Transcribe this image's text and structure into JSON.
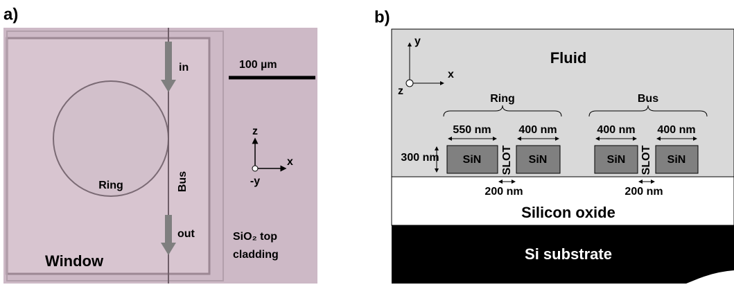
{
  "panel_a": {
    "label": "a)",
    "in": "in",
    "scale_bar": "100 µm",
    "bus": "Bus",
    "ring": "Ring",
    "out": "out",
    "cladding": [
      "SiO₂ top",
      "cladding"
    ],
    "window": "Window",
    "axes": {
      "z": "z",
      "x": "x",
      "y": "-y"
    }
  },
  "panel_b": {
    "label": "b)",
    "axes": {
      "y": "y",
      "x": "x",
      "z": "z"
    },
    "fluid": "Fluid",
    "ring": "Ring",
    "bus": "Bus",
    "widths": [
      "550 nm",
      "400 nm",
      "400 nm",
      "400 nm"
    ],
    "height": "300 nm",
    "sin": [
      "SiN",
      "SiN",
      "SiN",
      "SiN"
    ],
    "slot": [
      "SLOT",
      "SLOT"
    ],
    "gaps": [
      "200 nm",
      "200 nm"
    ],
    "oxide": "Silicon oxide",
    "substrate": "Si substrate"
  }
}
